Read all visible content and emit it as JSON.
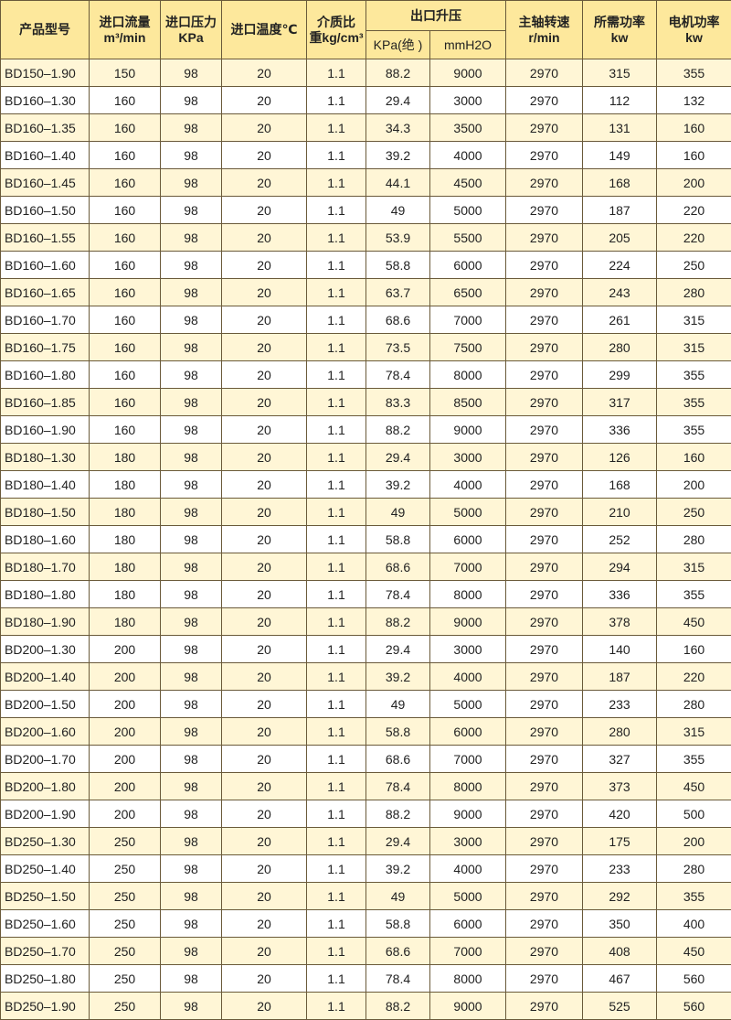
{
  "colors": {
    "header": "#fde89c",
    "alt_row": "#fff6d6",
    "border": "#6a5a3a"
  },
  "header": {
    "model": "产品型号",
    "flow": [
      "进口流量",
      "m³/min"
    ],
    "inlet_pressure": [
      "进口压力",
      "KPa"
    ],
    "inlet_temp": "进口温度℃",
    "density": [
      "介质比",
      "重kg/cm³"
    ],
    "outlet": "出口升压",
    "outlet_kpa": "KPa(绝 )",
    "outlet_mmh2o": "mmH2O",
    "speed": [
      "主轴转速",
      "r/min"
    ],
    "power_req": [
      "所需功率",
      "kw"
    ],
    "motor_power": [
      "电机功率",
      "kw"
    ]
  },
  "rows": [
    [
      "BD150–1.90",
      "150",
      "98",
      "20",
      "1.1",
      "88.2",
      "9000",
      "2970",
      "315",
      "355"
    ],
    [
      "BD160–1.30",
      "160",
      "98",
      "20",
      "1.1",
      "29.4",
      "3000",
      "2970",
      "112",
      "132"
    ],
    [
      "BD160–1.35",
      "160",
      "98",
      "20",
      "1.1",
      "34.3",
      "3500",
      "2970",
      "131",
      "160"
    ],
    [
      "BD160–1.40",
      "160",
      "98",
      "20",
      "1.1",
      "39.2",
      "4000",
      "2970",
      "149",
      "160"
    ],
    [
      "BD160–1.45",
      "160",
      "98",
      "20",
      "1.1",
      "44.1",
      "4500",
      "2970",
      "168",
      "200"
    ],
    [
      "BD160–1.50",
      "160",
      "98",
      "20",
      "1.1",
      "49",
      "5000",
      "2970",
      "187",
      "220"
    ],
    [
      "BD160–1.55",
      "160",
      "98",
      "20",
      "1.1",
      "53.9",
      "5500",
      "2970",
      "205",
      "220"
    ],
    [
      "BD160–1.60",
      "160",
      "98",
      "20",
      "1.1",
      "58.8",
      "6000",
      "2970",
      "224",
      "250"
    ],
    [
      "BD160–1.65",
      "160",
      "98",
      "20",
      "1.1",
      "63.7",
      "6500",
      "2970",
      "243",
      "280"
    ],
    [
      "BD160–1.70",
      "160",
      "98",
      "20",
      "1.1",
      "68.6",
      "7000",
      "2970",
      "261",
      "315"
    ],
    [
      "BD160–1.75",
      "160",
      "98",
      "20",
      "1.1",
      "73.5",
      "7500",
      "2970",
      "280",
      "315"
    ],
    [
      "BD160–1.80",
      "160",
      "98",
      "20",
      "1.1",
      "78.4",
      "8000",
      "2970",
      "299",
      "355"
    ],
    [
      "BD160–1.85",
      "160",
      "98",
      "20",
      "1.1",
      "83.3",
      "8500",
      "2970",
      "317",
      "355"
    ],
    [
      "BD160–1.90",
      "160",
      "98",
      "20",
      "1.1",
      "88.2",
      "9000",
      "2970",
      "336",
      "355"
    ],
    [
      "BD180–1.30",
      "180",
      "98",
      "20",
      "1.1",
      "29.4",
      "3000",
      "2970",
      "126",
      "160"
    ],
    [
      "BD180–1.40",
      "180",
      "98",
      "20",
      "1.1",
      "39.2",
      "4000",
      "2970",
      "168",
      "200"
    ],
    [
      "BD180–1.50",
      "180",
      "98",
      "20",
      "1.1",
      "49",
      "5000",
      "2970",
      "210",
      "250"
    ],
    [
      "BD180–1.60",
      "180",
      "98",
      "20",
      "1.1",
      "58.8",
      "6000",
      "2970",
      "252",
      "280"
    ],
    [
      "BD180–1.70",
      "180",
      "98",
      "20",
      "1.1",
      "68.6",
      "7000",
      "2970",
      "294",
      "315"
    ],
    [
      "BD180–1.80",
      "180",
      "98",
      "20",
      "1.1",
      "78.4",
      "8000",
      "2970",
      "336",
      "355"
    ],
    [
      "BD180–1.90",
      "180",
      "98",
      "20",
      "1.1",
      "88.2",
      "9000",
      "2970",
      "378",
      "450"
    ],
    [
      "BD200–1.30",
      "200",
      "98",
      "20",
      "1.1",
      "29.4",
      "3000",
      "2970",
      "140",
      "160"
    ],
    [
      "BD200–1.40",
      "200",
      "98",
      "20",
      "1.1",
      "39.2",
      "4000",
      "2970",
      "187",
      "220"
    ],
    [
      "BD200–1.50",
      "200",
      "98",
      "20",
      "1.1",
      "49",
      "5000",
      "2970",
      "233",
      "280"
    ],
    [
      "BD200–1.60",
      "200",
      "98",
      "20",
      "1.1",
      "58.8",
      "6000",
      "2970",
      "280",
      "315"
    ],
    [
      "BD200–1.70",
      "200",
      "98",
      "20",
      "1.1",
      "68.6",
      "7000",
      "2970",
      "327",
      "355"
    ],
    [
      "BD200–1.80",
      "200",
      "98",
      "20",
      "1.1",
      "78.4",
      "8000",
      "2970",
      "373",
      "450"
    ],
    [
      "BD200–1.90",
      "200",
      "98",
      "20",
      "1.1",
      "88.2",
      "9000",
      "2970",
      "420",
      "500"
    ],
    [
      "BD250–1.30",
      "250",
      "98",
      "20",
      "1.1",
      "29.4",
      "3000",
      "2970",
      "175",
      "200"
    ],
    [
      "BD250–1.40",
      "250",
      "98",
      "20",
      "1.1",
      "39.2",
      "4000",
      "2970",
      "233",
      "280"
    ],
    [
      "BD250–1.50",
      "250",
      "98",
      "20",
      "1.1",
      "49",
      "5000",
      "2970",
      "292",
      "355"
    ],
    [
      "BD250–1.60",
      "250",
      "98",
      "20",
      "1.1",
      "58.8",
      "6000",
      "2970",
      "350",
      "400"
    ],
    [
      "BD250–1.70",
      "250",
      "98",
      "20",
      "1.1",
      "68.6",
      "7000",
      "2970",
      "408",
      "450"
    ],
    [
      "BD250–1.80",
      "250",
      "98",
      "20",
      "1.1",
      "78.4",
      "8000",
      "2970",
      "467",
      "560"
    ],
    [
      "BD250–1.90",
      "250",
      "98",
      "20",
      "1.1",
      "88.2",
      "9000",
      "2970",
      "525",
      "560"
    ]
  ]
}
